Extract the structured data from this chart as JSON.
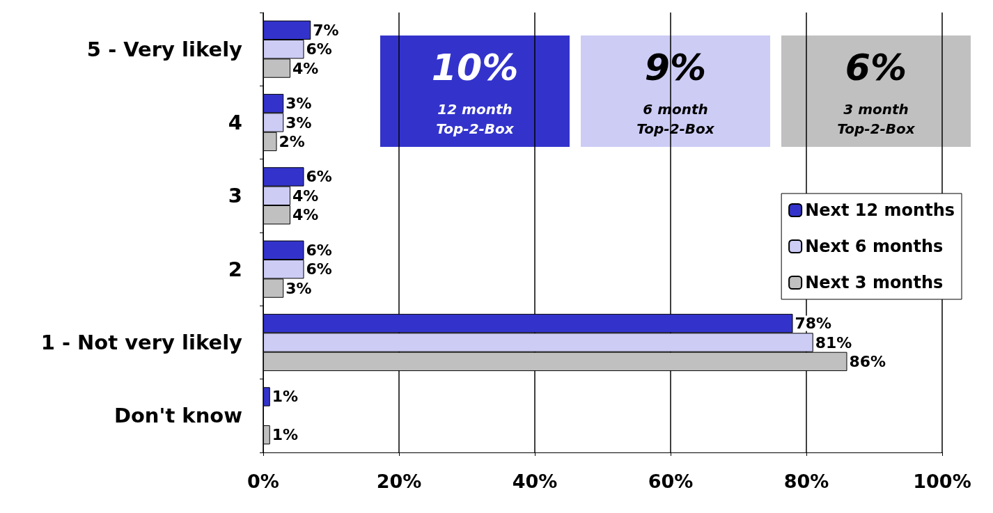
{
  "chart_data": {
    "type": "bar",
    "orientation": "horizontal",
    "categories": [
      "5 - Very likely",
      "4",
      "3",
      "2",
      "1 - Not very likely",
      "Don't know"
    ],
    "series": [
      {
        "name": "Next 12 months",
        "color": "#3333cc",
        "values": [
          7,
          3,
          6,
          6,
          78,
          1
        ],
        "value_labels": [
          "7%",
          "3%",
          "6%",
          "6%",
          "78%",
          "1%"
        ]
      },
      {
        "name": "Next 6 months",
        "color": "#ccccf5",
        "values": [
          6,
          3,
          4,
          6,
          81,
          null
        ],
        "value_labels": [
          "6%",
          "3%",
          "4%",
          "6%",
          "81%",
          null
        ]
      },
      {
        "name": "Next 3 months",
        "color": "#c0c0c0",
        "values": [
          4,
          2,
          4,
          3,
          86,
          1
        ],
        "value_labels": [
          "4%",
          "2%",
          "4%",
          "3%",
          "86%",
          "1%"
        ]
      }
    ],
    "xlim": [
      0,
      100
    ],
    "xticks": [
      {
        "value": 0,
        "label": "0%"
      },
      {
        "value": 20,
        "label": "20%"
      },
      {
        "value": 40,
        "label": "40%"
      },
      {
        "value": 60,
        "label": "60%"
      },
      {
        "value": 80,
        "label": "80%"
      },
      {
        "value": 100,
        "label": "100%"
      }
    ],
    "grid": "x",
    "legend": "right",
    "annotations": [
      "10%\n12 month\nTop-2-Box",
      "9%\n6 month\nTop-2-Box",
      "6%\n3 month\nTop-2-Box"
    ]
  }
}
